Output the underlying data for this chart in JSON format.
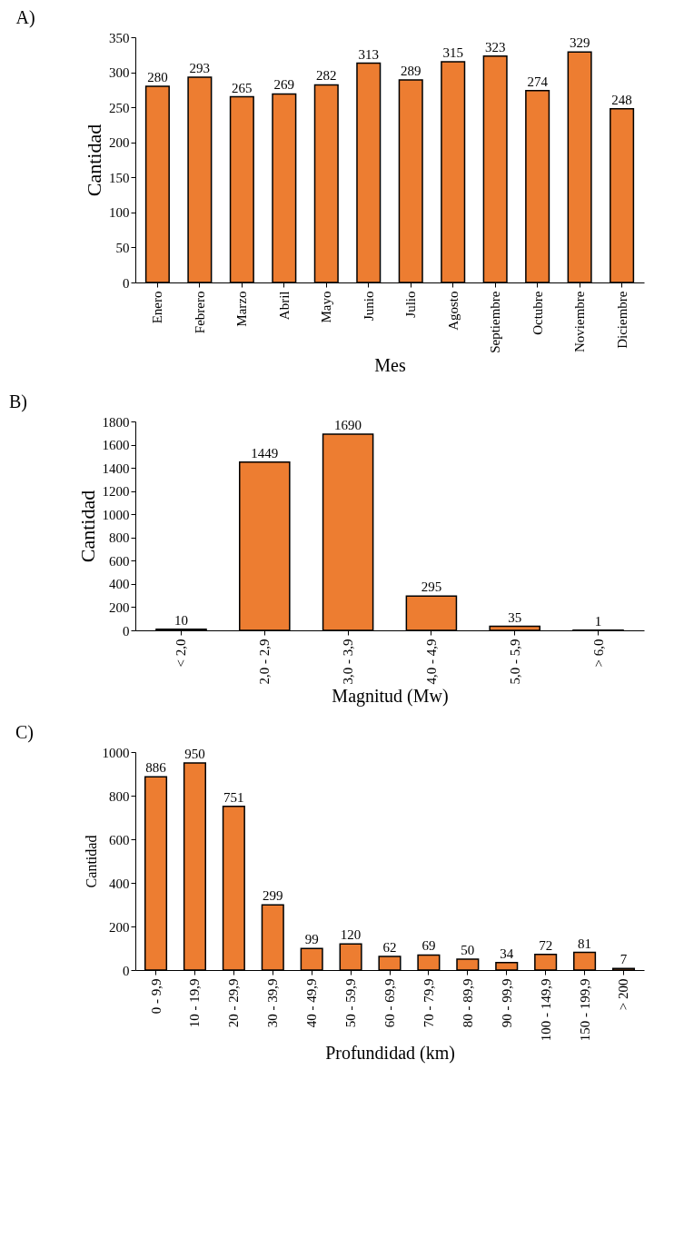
{
  "chart_data": [
    {
      "type": "bar",
      "title": "A)",
      "xlabel": "Mes",
      "ylabel": "Cantidad",
      "categories": [
        "Enero",
        "Febrero",
        "Marzo",
        "Abril",
        "Mayo",
        "Junio",
        "Julio",
        "Agosto",
        "Septiembre",
        "Octubre",
        "Noviembre",
        "Diciembre"
      ],
      "values": [
        280,
        293,
        265,
        269,
        282,
        313,
        289,
        315,
        323,
        274,
        329,
        248
      ],
      "color": "#ed7d31",
      "ylim": [
        0,
        350
      ],
      "yticks": [
        0,
        50,
        100,
        150,
        200,
        250,
        300,
        350
      ],
      "grid": false,
      "data_labels": true
    },
    {
      "type": "bar",
      "title": "B)",
      "xlabel": "Magnitud (Mw)",
      "ylabel": "Cantidad",
      "categories": [
        "< 2,0",
        "2,0 - 2,9",
        "3,0 - 3,9",
        "4,0 - 4,9",
        "5,0 - 5,9",
        "> 6,0"
      ],
      "values": [
        10,
        1449,
        1690,
        295,
        35,
        1
      ],
      "color": "#ed7d31",
      "ylim": [
        0,
        1800
      ],
      "yticks": [
        0,
        200,
        400,
        600,
        800,
        1000,
        1200,
        1400,
        1600,
        1800
      ],
      "grid": false,
      "data_labels": true
    },
    {
      "type": "bar",
      "title": "C)",
      "xlabel": "Profundidad (km)",
      "ylabel": "Cantidad",
      "categories": [
        "0 - 9,9",
        "10 - 19,9",
        "20 - 29,9",
        "30 - 39,9",
        "40 - 49,9",
        "50 - 59,9",
        "60 - 69,9",
        "70 - 79,9",
        "80 - 89,9",
        "90 - 99,9",
        "100 - 149,9",
        "150 - 199,9",
        "> 200"
      ],
      "values": [
        886,
        950,
        751,
        299,
        99,
        120,
        62,
        69,
        50,
        34,
        72,
        81,
        7
      ],
      "color": "#ed7d31",
      "ylim": [
        0,
        1000
      ],
      "yticks": [
        0,
        200,
        400,
        600,
        800,
        1000
      ],
      "grid": false,
      "data_labels": true
    }
  ]
}
